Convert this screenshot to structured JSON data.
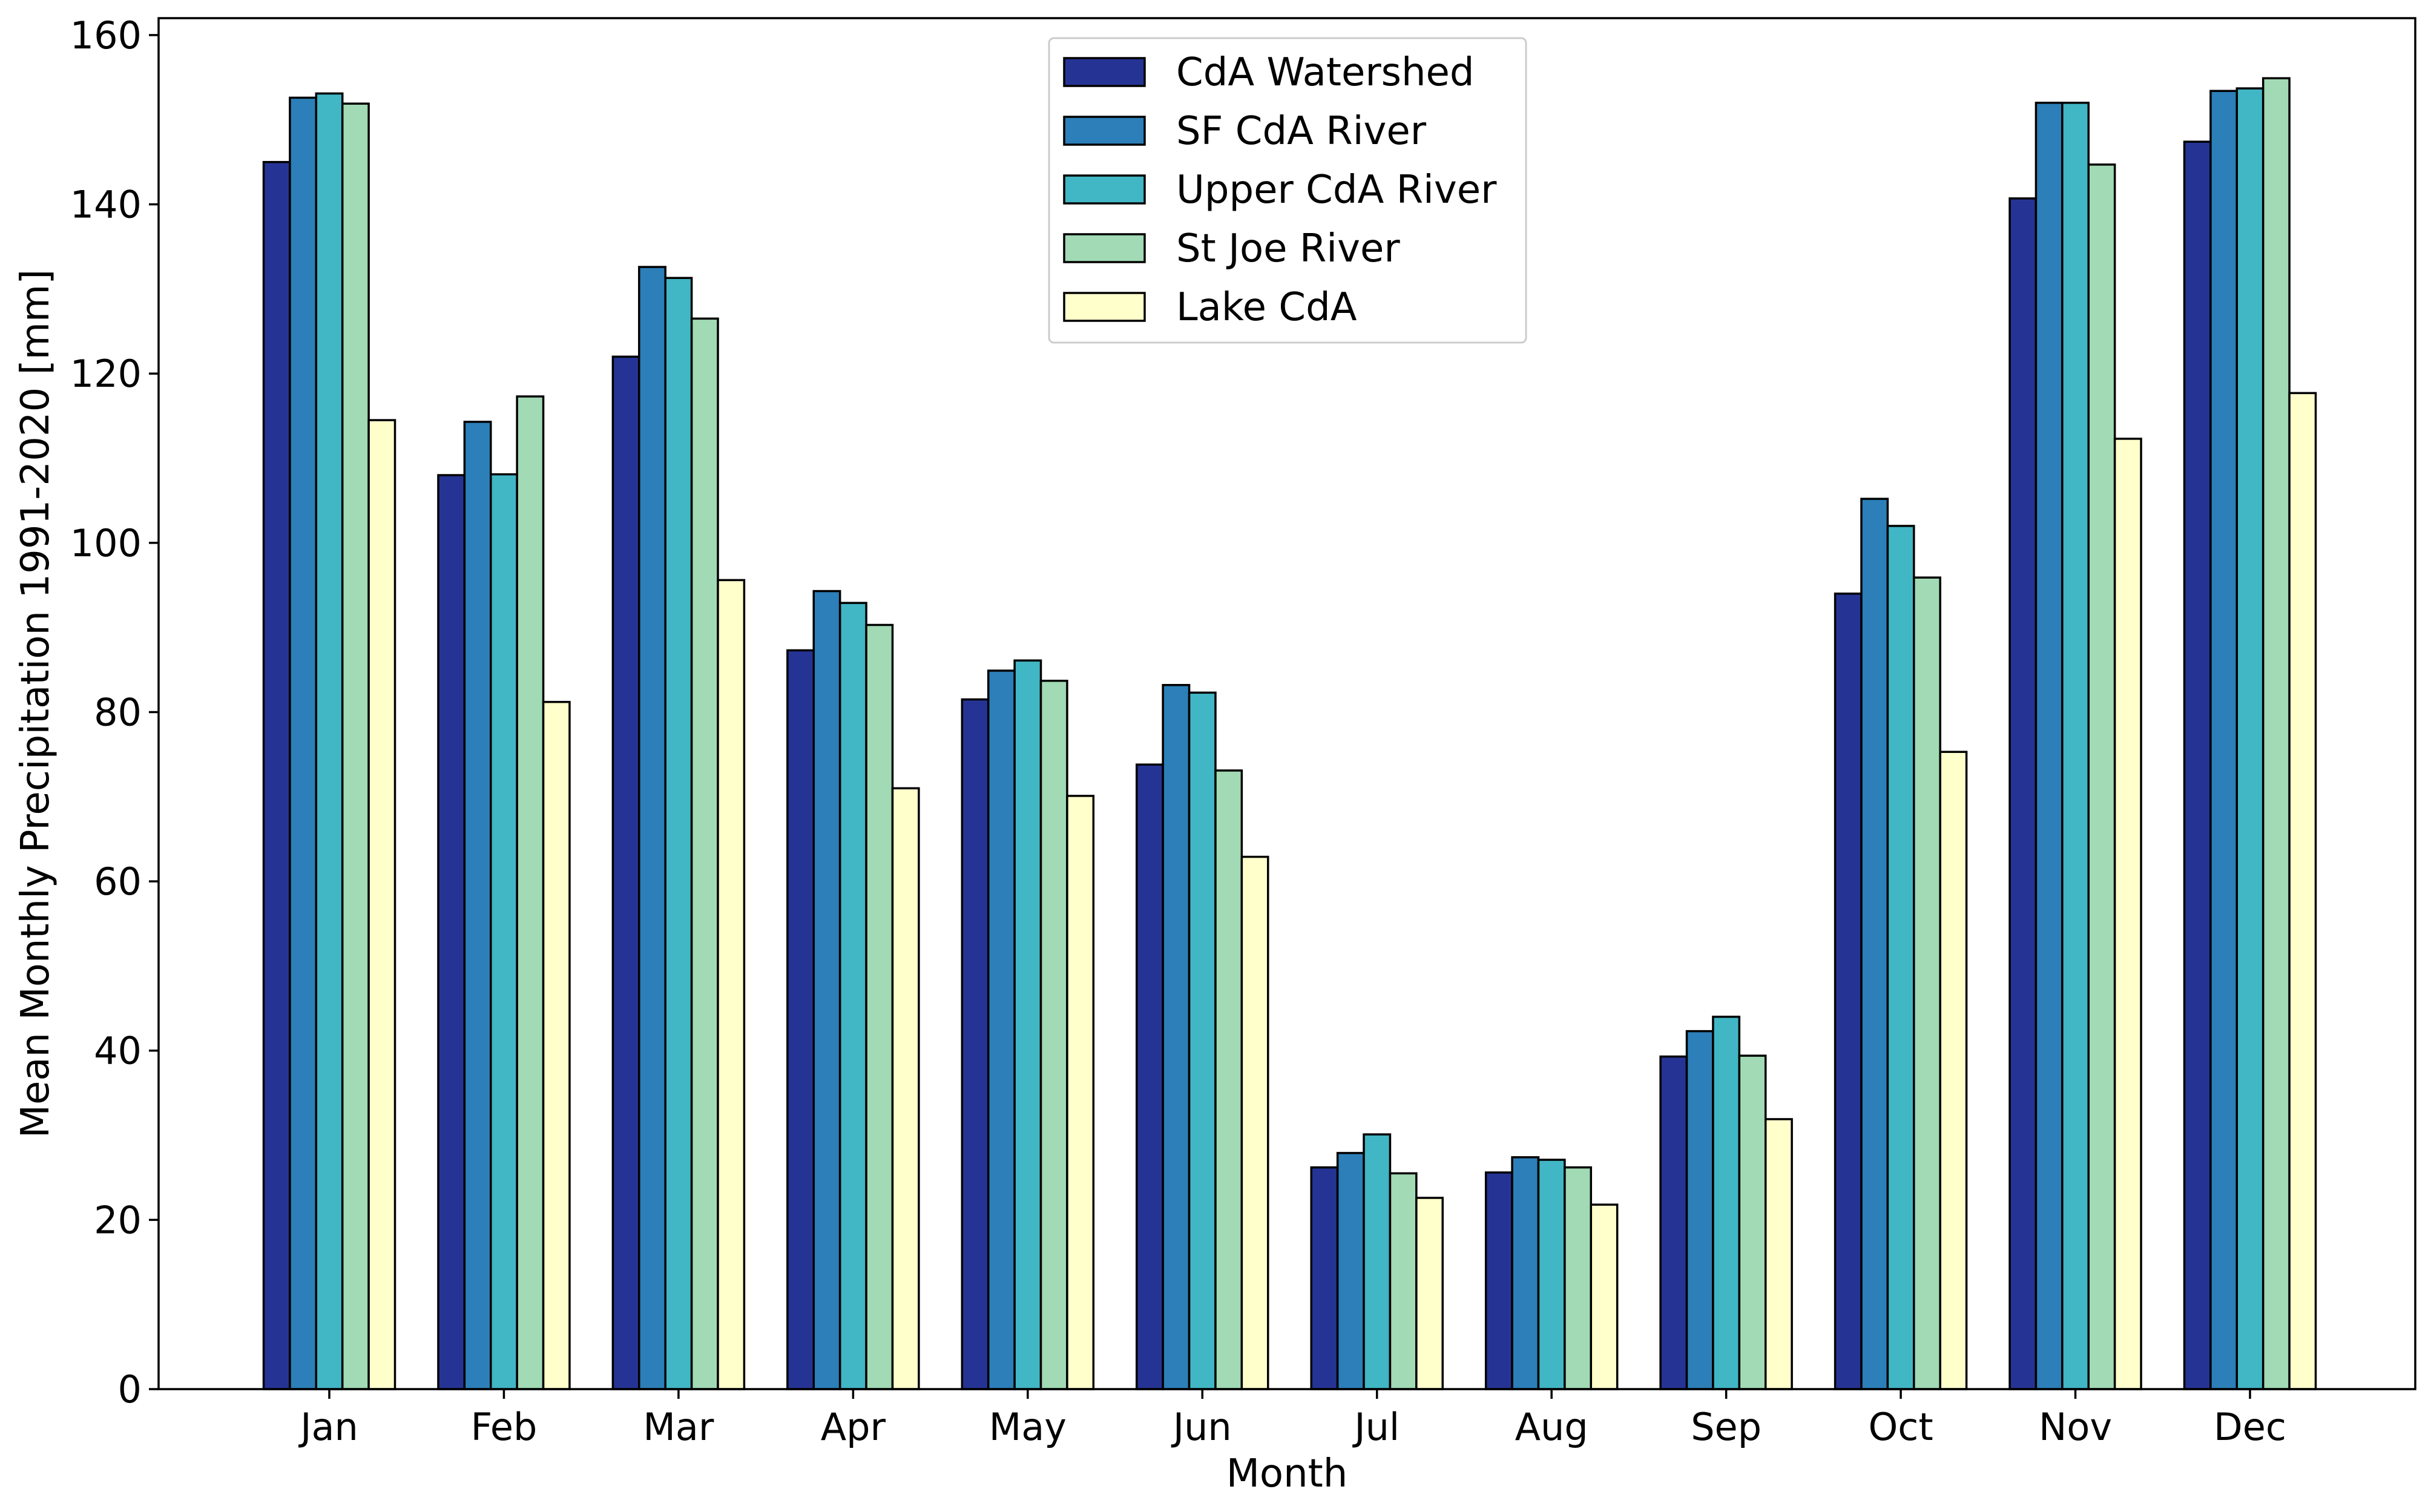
{
  "chart_data": {
    "type": "bar",
    "title": "",
    "xlabel": "Month",
    "ylabel": "Mean Monthly Precipitation 1991-2020 [mm]",
    "ylim": [
      0,
      162
    ],
    "yticks": [
      0,
      20,
      40,
      60,
      80,
      100,
      120,
      140,
      160
    ],
    "grid": false,
    "legend_position": "top-center",
    "categories": [
      "Jan",
      "Feb",
      "Mar",
      "Apr",
      "May",
      "Jun",
      "Jul",
      "Aug",
      "Sep",
      "Oct",
      "Nov",
      "Dec"
    ],
    "series": [
      {
        "name": "CdA Watershed",
        "color": "#253494",
        "values": [
          145.0,
          108.0,
          122.0,
          87.3,
          81.5,
          73.8,
          26.2,
          25.6,
          39.3,
          94.0,
          140.7,
          147.4
        ]
      },
      {
        "name": "SF CdA River",
        "color": "#2c7fb8",
        "values": [
          152.6,
          114.3,
          132.6,
          94.3,
          84.9,
          83.2,
          27.9,
          27.4,
          42.3,
          105.2,
          152.0,
          153.4
        ]
      },
      {
        "name": "Upper CdA River",
        "color": "#41b6c4",
        "values": [
          153.1,
          108.1,
          131.3,
          92.9,
          86.1,
          82.3,
          30.1,
          27.1,
          44.0,
          102.0,
          152.0,
          153.7
        ]
      },
      {
        "name": "St Joe River",
        "color": "#a1dab4",
        "values": [
          151.9,
          117.3,
          126.5,
          90.3,
          83.7,
          73.1,
          25.5,
          26.2,
          39.4,
          95.9,
          144.7,
          154.9
        ]
      },
      {
        "name": "Lake CdA",
        "color": "#ffffcc",
        "values": [
          114.5,
          81.2,
          95.6,
          71.0,
          70.1,
          62.9,
          22.6,
          21.8,
          31.9,
          75.3,
          112.3,
          117.7
        ]
      }
    ]
  }
}
